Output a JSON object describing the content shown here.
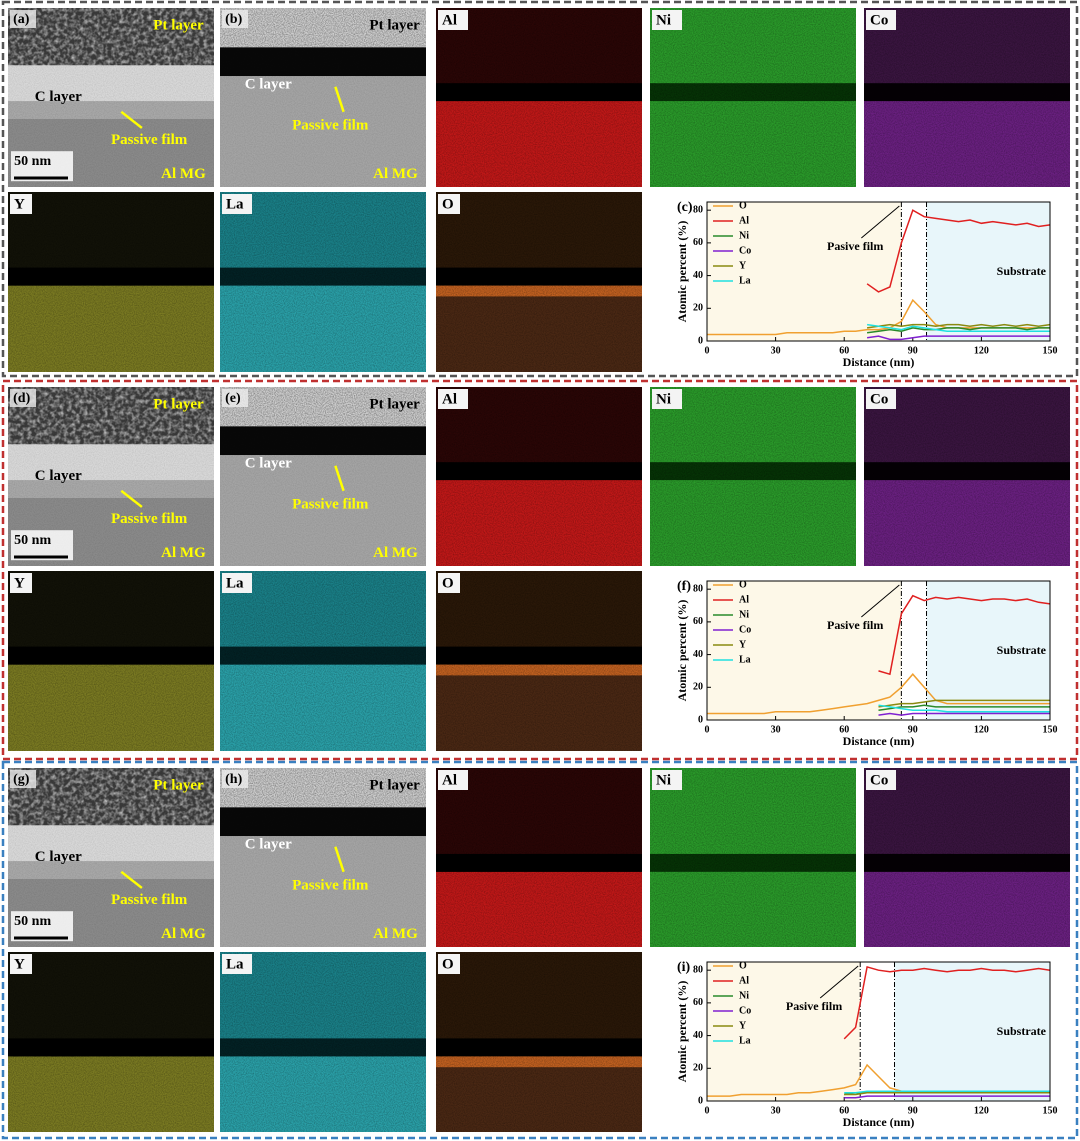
{
  "panels": [
    {
      "micrographs": [
        {
          "label": "(a)",
          "pt": "Pt layer",
          "c": "C layer",
          "film": "Passive film",
          "scale": "50 nm",
          "sub": "Al MG"
        },
        {
          "label": "(b)",
          "pt": "Pt layer",
          "c": "C layer",
          "film": "Passive film",
          "sub": "Al MG"
        }
      ],
      "maps": [
        "Al",
        "Ni",
        "Co",
        "Y",
        "La",
        "O"
      ]
    },
    {
      "micrographs": [
        {
          "label": "(d)",
          "pt": "Pt layer",
          "c": "C layer",
          "film": "Passive film",
          "scale": "50 nm",
          "sub": "Al MG"
        },
        {
          "label": "(e)",
          "pt": "Pt layer",
          "c": "C layer",
          "film": "Passive film",
          "sub": "Al MG"
        }
      ],
      "maps": [
        "Al",
        "Ni",
        "Co",
        "Y",
        "La",
        "O"
      ]
    },
    {
      "micrographs": [
        {
          "label": "(g)",
          "pt": "Pt layer",
          "c": "C layer",
          "film": "Passive film",
          "scale": "50 nm",
          "sub": "Al MG"
        },
        {
          "label": "(h)",
          "pt": "Pt layer",
          "c": "C layer",
          "film": "Passive film",
          "sub": "Al MG"
        }
      ],
      "maps": [
        "Al",
        "Ni",
        "Co",
        "Y",
        "La",
        "O"
      ]
    }
  ],
  "chart_data": [
    {
      "type": "line",
      "label": "(c)",
      "xlabel": "Distance (nm)",
      "ylabel": "Atomic percent (%)",
      "annotations": [
        "Pasive film",
        "Substrate"
      ],
      "xlim": [
        0,
        150
      ],
      "ylim": [
        0,
        85
      ],
      "xticks": [
        0,
        30,
        60,
        90,
        120,
        150
      ],
      "yticks": [
        0,
        20,
        40,
        60,
        80
      ],
      "vlines": [
        85,
        96
      ],
      "x": [
        0,
        5,
        10,
        15,
        20,
        25,
        30,
        35,
        40,
        45,
        50,
        55,
        60,
        65,
        70,
        75,
        80,
        85,
        90,
        95,
        100,
        105,
        110,
        115,
        120,
        125,
        130,
        135,
        140,
        145,
        150
      ],
      "series": [
        {
          "name": "O",
          "color": "#f0a030",
          "values": [
            4,
            4,
            4,
            4,
            4,
            4,
            4,
            5,
            5,
            5,
            5,
            5,
            6,
            6,
            7,
            7,
            8,
            12,
            25,
            18,
            10,
            8,
            8,
            8,
            8,
            8,
            8,
            8,
            8,
            8,
            8
          ]
        },
        {
          "name": "Al",
          "color": "#e02020",
          "values": [
            null,
            null,
            null,
            null,
            null,
            null,
            null,
            null,
            null,
            null,
            null,
            null,
            null,
            null,
            35,
            30,
            33,
            60,
            80,
            76,
            75,
            74,
            73,
            74,
            72,
            73,
            72,
            71,
            72,
            70,
            71
          ]
        },
        {
          "name": "Ni",
          "color": "#2a8a2a",
          "values": [
            null,
            null,
            null,
            null,
            null,
            null,
            null,
            null,
            null,
            null,
            null,
            null,
            null,
            null,
            5,
            6,
            7,
            6,
            8,
            7,
            7,
            8,
            8,
            7,
            8,
            8,
            8,
            8,
            7,
            8,
            8
          ]
        },
        {
          "name": "Co",
          "color": "#8020d0",
          "values": [
            null,
            null,
            null,
            null,
            null,
            null,
            null,
            null,
            null,
            null,
            null,
            null,
            null,
            null,
            2,
            3,
            1,
            1,
            2,
            3,
            3,
            3,
            3,
            3,
            3,
            3,
            3,
            3,
            3,
            3,
            3
          ]
        },
        {
          "name": "Y",
          "color": "#8a8a10",
          "values": [
            null,
            null,
            null,
            null,
            null,
            null,
            null,
            null,
            null,
            null,
            null,
            null,
            null,
            null,
            8,
            9,
            10,
            9,
            10,
            10,
            9,
            10,
            10,
            9,
            10,
            9,
            10,
            9,
            10,
            9,
            10
          ]
        },
        {
          "name": "La",
          "color": "#20e0e0",
          "values": [
            null,
            null,
            null,
            null,
            null,
            null,
            null,
            null,
            null,
            null,
            null,
            null,
            null,
            null,
            10,
            9,
            8,
            7,
            9,
            8,
            7,
            6,
            6,
            6,
            6,
            6,
            6,
            6,
            6,
            6,
            6
          ]
        }
      ]
    },
    {
      "type": "line",
      "label": "(f)",
      "xlabel": "Distance (nm)",
      "ylabel": "Atomic percent (%)",
      "annotations": [
        "Pasive film",
        "Substrate"
      ],
      "xlim": [
        0,
        150
      ],
      "ylim": [
        0,
        85
      ],
      "xticks": [
        0,
        30,
        60,
        90,
        120,
        150
      ],
      "yticks": [
        0,
        20,
        40,
        60,
        80
      ],
      "vlines": [
        85,
        96
      ],
      "x": [
        0,
        5,
        10,
        15,
        20,
        25,
        30,
        35,
        40,
        45,
        50,
        55,
        60,
        65,
        70,
        75,
        80,
        85,
        90,
        95,
        100,
        105,
        110,
        115,
        120,
        125,
        130,
        135,
        140,
        145,
        150
      ],
      "series": [
        {
          "name": "O",
          "color": "#f0a030",
          "values": [
            4,
            4,
            4,
            4,
            4,
            4,
            5,
            5,
            5,
            5,
            6,
            7,
            8,
            9,
            10,
            12,
            14,
            20,
            28,
            20,
            12,
            10,
            10,
            10,
            10,
            10,
            10,
            10,
            10,
            10,
            10
          ]
        },
        {
          "name": "Al",
          "color": "#e02020",
          "values": [
            null,
            null,
            null,
            null,
            null,
            null,
            null,
            null,
            null,
            null,
            null,
            null,
            null,
            null,
            null,
            30,
            28,
            65,
            76,
            73,
            75,
            74,
            75,
            74,
            73,
            74,
            74,
            73,
            74,
            72,
            71
          ]
        },
        {
          "name": "Ni",
          "color": "#2a8a2a",
          "values": [
            null,
            null,
            null,
            null,
            null,
            null,
            null,
            null,
            null,
            null,
            null,
            null,
            null,
            null,
            null,
            6,
            7,
            8,
            8,
            9,
            8,
            8,
            8,
            8,
            8,
            8,
            8,
            8,
            8,
            8,
            8
          ]
        },
        {
          "name": "Co",
          "color": "#8020d0",
          "values": [
            null,
            null,
            null,
            null,
            null,
            null,
            null,
            null,
            null,
            null,
            null,
            null,
            null,
            null,
            null,
            3,
            4,
            3,
            4,
            4,
            4,
            4,
            4,
            4,
            4,
            4,
            4,
            4,
            4,
            4,
            4
          ]
        },
        {
          "name": "Y",
          "color": "#8a8a10",
          "values": [
            null,
            null,
            null,
            null,
            null,
            null,
            null,
            null,
            null,
            null,
            null,
            null,
            null,
            null,
            null,
            8,
            9,
            10,
            10,
            11,
            12,
            12,
            12,
            12,
            12,
            12,
            12,
            12,
            12,
            12,
            12
          ]
        },
        {
          "name": "La",
          "color": "#20e0e0",
          "values": [
            null,
            null,
            null,
            null,
            null,
            null,
            null,
            null,
            null,
            null,
            null,
            null,
            null,
            null,
            null,
            9,
            8,
            7,
            6,
            6,
            6,
            5,
            5,
            5,
            5,
            5,
            5,
            5,
            5,
            5,
            5
          ]
        }
      ]
    },
    {
      "type": "line",
      "label": "(i)",
      "xlabel": "Distance (nm)",
      "ylabel": "Atomic percent (%)",
      "annotations": [
        "Pasive film",
        "Substrate"
      ],
      "xlim": [
        0,
        150
      ],
      "ylim": [
        0,
        85
      ],
      "xticks": [
        0,
        30,
        60,
        90,
        120,
        150
      ],
      "yticks": [
        0,
        20,
        40,
        60,
        80
      ],
      "vlines": [
        67,
        82
      ],
      "x": [
        0,
        5,
        10,
        15,
        20,
        25,
        30,
        35,
        40,
        45,
        50,
        55,
        60,
        65,
        70,
        75,
        80,
        85,
        90,
        95,
        100,
        105,
        110,
        115,
        120,
        125,
        130,
        135,
        140,
        145,
        150
      ],
      "series": [
        {
          "name": "O",
          "color": "#f0a030",
          "values": [
            3,
            3,
            3,
            4,
            4,
            4,
            4,
            4,
            5,
            5,
            6,
            7,
            8,
            10,
            22,
            15,
            8,
            6,
            5,
            5,
            5,
            5,
            5,
            5,
            5,
            5,
            5,
            5,
            5,
            5,
            5
          ]
        },
        {
          "name": "Al",
          "color": "#e02020",
          "values": [
            null,
            null,
            null,
            null,
            null,
            null,
            null,
            null,
            null,
            null,
            null,
            null,
            38,
            45,
            82,
            80,
            79,
            80,
            80,
            81,
            80,
            79,
            80,
            80,
            81,
            80,
            80,
            79,
            80,
            81,
            80
          ]
        },
        {
          "name": "Ni",
          "color": "#2a8a2a",
          "values": [
            null,
            null,
            null,
            null,
            null,
            null,
            null,
            null,
            null,
            null,
            null,
            null,
            4,
            5,
            5,
            6,
            6,
            6,
            6,
            6,
            6,
            6,
            6,
            6,
            6,
            6,
            6,
            6,
            6,
            6,
            6
          ]
        },
        {
          "name": "Co",
          "color": "#8020d0",
          "values": [
            null,
            null,
            null,
            null,
            null,
            null,
            null,
            null,
            null,
            null,
            null,
            null,
            2,
            2,
            3,
            3,
            3,
            3,
            3,
            3,
            3,
            3,
            3,
            3,
            3,
            3,
            3,
            3,
            3,
            3,
            3
          ]
        },
        {
          "name": "Y",
          "color": "#8a8a10",
          "values": [
            null,
            null,
            null,
            null,
            null,
            null,
            null,
            null,
            null,
            null,
            null,
            null,
            4,
            4,
            5,
            5,
            5,
            5,
            5,
            5,
            5,
            5,
            5,
            5,
            5,
            5,
            5,
            5,
            5,
            5,
            5
          ]
        },
        {
          "name": "La",
          "color": "#20e0e0",
          "values": [
            null,
            null,
            null,
            null,
            null,
            null,
            null,
            null,
            null,
            null,
            null,
            null,
            5,
            5,
            6,
            6,
            6,
            6,
            6,
            6,
            6,
            6,
            6,
            6,
            6,
            6,
            6,
            6,
            6,
            6,
            6
          ]
        }
      ]
    }
  ]
}
